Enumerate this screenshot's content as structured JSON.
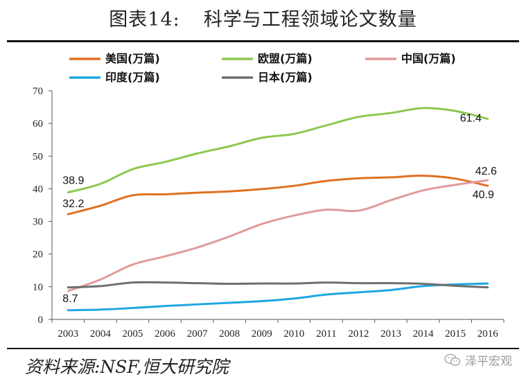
{
  "header": {
    "fig_label": "图表14:",
    "title": "科学与工程领域论文数量"
  },
  "footer": {
    "source": "资料来源:NSF,恒大研究院",
    "brand": "泽平宏观"
  },
  "chart_data": {
    "type": "line",
    "title": "科学与工程领域论文数量",
    "xlabel": "",
    "ylabel": "",
    "x": [
      "2003",
      "2004",
      "2005",
      "2006",
      "2007",
      "2008",
      "2009",
      "2010",
      "2011",
      "2012",
      "2013",
      "2014",
      "2015",
      "2016"
    ],
    "ylim": [
      0,
      70
    ],
    "yticks": [
      0,
      10,
      20,
      30,
      40,
      50,
      60,
      70
    ],
    "grid": false,
    "legend_position": "top",
    "series": [
      {
        "name": "美国(万篇)",
        "color": "#E07020",
        "values": [
          32.2,
          34.8,
          38.0,
          38.3,
          38.8,
          39.2,
          39.9,
          40.9,
          42.4,
          43.2,
          43.5,
          44.0,
          43.1,
          40.9
        ]
      },
      {
        "name": "欧盟(万篇)",
        "color": "#8CC850",
        "values": [
          38.9,
          41.5,
          46.0,
          48.2,
          50.8,
          53.0,
          55.6,
          56.8,
          59.4,
          62.0,
          63.2,
          64.7,
          63.8,
          61.4
        ]
      },
      {
        "name": "中国(万篇)",
        "color": "#E09A9A",
        "values": [
          8.7,
          12.2,
          16.8,
          19.3,
          22.0,
          25.4,
          29.2,
          31.8,
          33.6,
          33.3,
          36.5,
          39.5,
          41.2,
          42.6
        ]
      },
      {
        "name": "印度(万篇)",
        "color": "#1EA7E1",
        "values": [
          2.8,
          3.0,
          3.5,
          4.1,
          4.6,
          5.1,
          5.6,
          6.4,
          7.6,
          8.3,
          9.0,
          10.2,
          10.7,
          11.0
        ]
      },
      {
        "name": "日本(万篇)",
        "color": "#6E6E6E",
        "values": [
          9.8,
          10.2,
          11.3,
          11.3,
          11.1,
          10.9,
          11.0,
          11.0,
          11.3,
          11.1,
          11.1,
          10.9,
          10.3,
          9.8
        ]
      }
    ],
    "annotations": [
      {
        "series": 1,
        "index": 0,
        "text": "38.9"
      },
      {
        "series": 0,
        "index": 0,
        "text": "32.2"
      },
      {
        "series": 2,
        "index": 0,
        "text": "8.7"
      },
      {
        "series": 1,
        "index": 13,
        "text": "61.4"
      },
      {
        "series": 2,
        "index": 13,
        "text": "42.6"
      },
      {
        "series": 0,
        "index": 13,
        "text": "40.9"
      }
    ]
  }
}
